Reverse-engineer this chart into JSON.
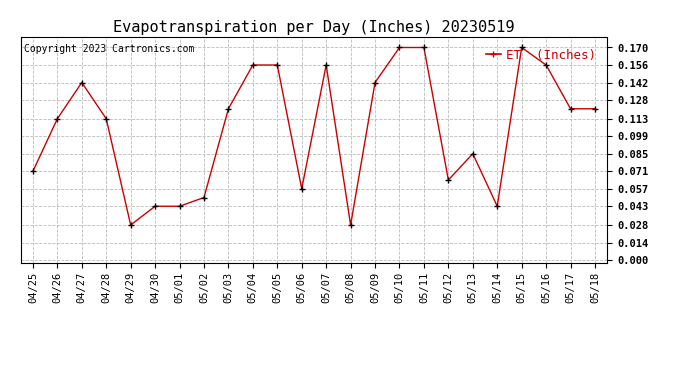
{
  "title": "Evapotranspiration per Day (Inches) 20230519",
  "copyright": "Copyright 2023 Cartronics.com",
  "legend_label": "ET  (Inches)",
  "dates": [
    "04/25",
    "04/26",
    "04/27",
    "04/28",
    "04/29",
    "04/30",
    "05/01",
    "05/02",
    "05/03",
    "05/04",
    "05/05",
    "05/06",
    "05/07",
    "05/08",
    "05/09",
    "05/10",
    "05/11",
    "05/12",
    "05/13",
    "05/14",
    "05/15",
    "05/16",
    "05/17",
    "05/18"
  ],
  "values": [
    0.071,
    0.113,
    0.142,
    0.113,
    0.028,
    0.043,
    0.043,
    0.05,
    0.121,
    0.156,
    0.156,
    0.057,
    0.156,
    0.028,
    0.142,
    0.17,
    0.17,
    0.064,
    0.085,
    0.043,
    0.17,
    0.156,
    0.121,
    0.121
  ],
  "yticks": [
    0.0,
    0.014,
    0.028,
    0.043,
    0.057,
    0.071,
    0.085,
    0.099,
    0.113,
    0.128,
    0.142,
    0.156,
    0.17
  ],
  "line_color": "#cc0000",
  "marker_color": "black",
  "marker": "+",
  "bg_color": "white",
  "grid_color": "#bbbbbb",
  "title_fontsize": 11,
  "copyright_fontsize": 7,
  "legend_fontsize": 9,
  "tick_fontsize": 7.5
}
